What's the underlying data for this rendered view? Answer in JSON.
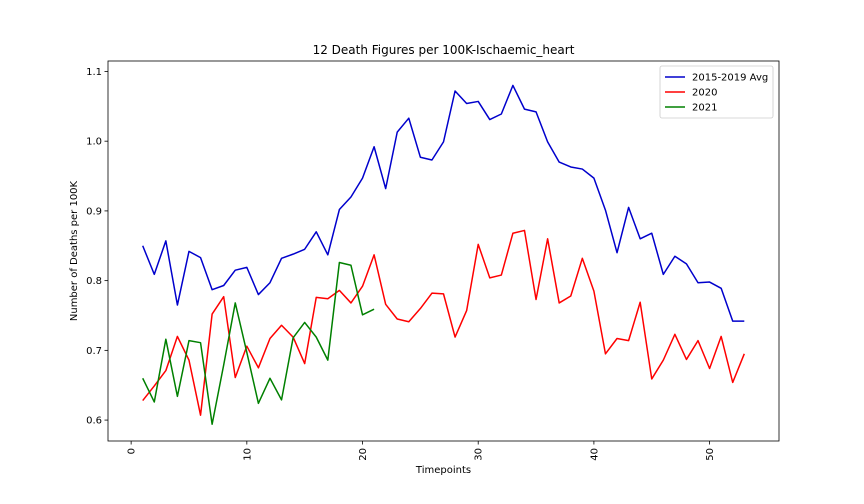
{
  "chart_data": {
    "type": "line",
    "title": "12 Death Figures per 100K-Ischaemic_heart",
    "xlabel": "Timepoints",
    "ylabel": "Number of Deaths per 100K",
    "xlim": [
      -2,
      56
    ],
    "ylim": [
      0.57,
      1.115
    ],
    "xticks": [
      0,
      10,
      20,
      30,
      40,
      50
    ],
    "yticks": [
      0.6,
      0.7,
      0.8,
      0.9,
      1.0,
      1.1
    ],
    "ytick_labels": [
      "0.6",
      "0.7",
      "0.8",
      "0.9",
      "1.0",
      "1.1"
    ],
    "grid": false,
    "legend_position": "top-right",
    "series": [
      {
        "name": "2015-2019 Avg",
        "color": "#0000cc",
        "x": [
          1,
          2,
          3,
          4,
          5,
          6,
          7,
          8,
          9,
          10,
          11,
          12,
          13,
          14,
          15,
          16,
          17,
          18,
          19,
          20,
          21,
          22,
          23,
          24,
          25,
          26,
          27,
          28,
          29,
          30,
          31,
          32,
          33,
          34,
          35,
          36,
          37,
          38,
          39,
          40,
          41,
          42,
          43,
          44,
          45,
          46,
          47,
          48,
          49,
          50,
          51,
          52,
          53
        ],
        "values": [
          0.85,
          0.809,
          0.857,
          0.765,
          0.842,
          0.833,
          0.787,
          0.793,
          0.815,
          0.819,
          0.78,
          0.797,
          0.832,
          0.838,
          0.845,
          0.87,
          0.837,
          0.902,
          0.92,
          0.947,
          0.992,
          0.932,
          1.013,
          1.033,
          0.977,
          0.973,
          0.999,
          1.072,
          1.054,
          1.057,
          1.031,
          1.039,
          1.08,
          1.046,
          1.042,
          0.999,
          0.97,
          0.963,
          0.96,
          0.947,
          0.901,
          0.84,
          0.905,
          0.86,
          0.868,
          0.809,
          0.835,
          0.824,
          0.797,
          0.798,
          0.789,
          0.742,
          0.742
        ]
      },
      {
        "name": "2020",
        "color": "#ff0000",
        "x": [
          1,
          2,
          3,
          4,
          5,
          6,
          7,
          8,
          9,
          10,
          11,
          12,
          13,
          14,
          15,
          16,
          17,
          18,
          19,
          20,
          21,
          22,
          23,
          24,
          25,
          26,
          27,
          28,
          29,
          30,
          31,
          32,
          33,
          34,
          35,
          36,
          37,
          38,
          39,
          40,
          41,
          42,
          43,
          44,
          45,
          46,
          47,
          48,
          49,
          50,
          51,
          52,
          53
        ],
        "values": [
          0.628,
          0.649,
          0.671,
          0.72,
          0.686,
          0.607,
          0.752,
          0.777,
          0.661,
          0.706,
          0.675,
          0.717,
          0.736,
          0.719,
          0.681,
          0.776,
          0.774,
          0.786,
          0.768,
          0.792,
          0.837,
          0.766,
          0.745,
          0.741,
          0.76,
          0.782,
          0.781,
          0.719,
          0.757,
          0.852,
          0.804,
          0.808,
          0.868,
          0.872,
          0.773,
          0.86,
          0.768,
          0.778,
          0.832,
          0.785,
          0.695,
          0.717,
          0.714,
          0.769,
          0.659,
          0.686,
          0.723,
          0.687,
          0.714,
          0.674,
          0.72,
          0.654,
          0.695
        ]
      },
      {
        "name": "2021",
        "color": "#008000",
        "x": [
          1,
          2,
          3,
          4,
          5,
          6,
          7,
          8,
          9,
          10,
          11,
          12,
          13,
          14,
          15,
          16,
          17,
          18,
          19,
          20,
          21
        ],
        "values": [
          0.66,
          0.626,
          0.716,
          0.634,
          0.714,
          0.711,
          0.594,
          0.679,
          0.768,
          0.697,
          0.624,
          0.66,
          0.629,
          0.718,
          0.74,
          0.719,
          0.686,
          0.826,
          0.822,
          0.751,
          0.759
        ]
      }
    ]
  }
}
